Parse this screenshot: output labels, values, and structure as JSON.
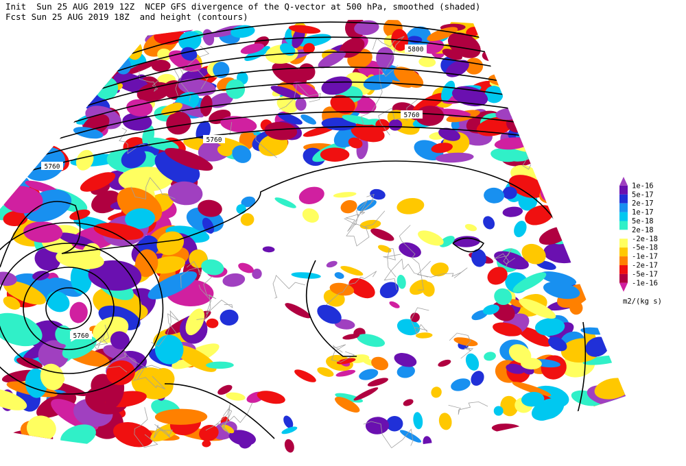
{
  "header": {
    "line1": "Init  Sun 25 AUG 2019 12Z  NCEP GFS divergence of the Q-vector at 500 hPa, smoothed (shaded)",
    "line2": "Fcst Sun 25 AUG 2019 18Z  and height (contours)"
  },
  "colorbar": {
    "unit": "m2/(kg s)",
    "colors": [
      "#a040c0",
      "#6a10b0",
      "#2030d8",
      "#1890f0",
      "#00c8f0",
      "#30f0c8",
      "#ffffff",
      "#ffff60",
      "#ffc800",
      "#ff8000",
      "#f01010",
      "#b00040",
      "#d020a0"
    ],
    "labels": [
      "1e-16",
      "5e-17",
      "2e-17",
      "1e-17",
      "5e-18",
      "2e-18",
      "-2e-18",
      "-5e-18",
      "-1e-17",
      "-2e-17",
      "-5e-17",
      "-1e-16"
    ]
  },
  "contour_labels": [
    "5800",
    "5760",
    "5760",
    "5760",
    "5760"
  ]
}
